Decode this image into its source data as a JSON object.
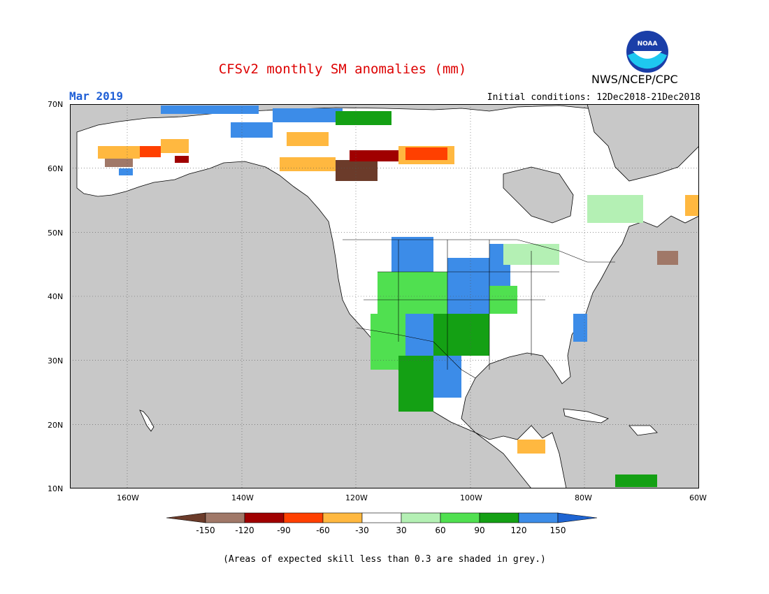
{
  "header": {
    "title": "CFSv2 monthly SM anomalies (mm)",
    "valid_month": "Mar 2019",
    "initial_conditions": "Initial conditions: 12Dec2018-21Dec2018",
    "agency": "NWS/NCEP/CPC",
    "logo_text": "NOAA"
  },
  "map": {
    "region": "North America",
    "lon_range": [
      -172,
      -60
    ],
    "lat_range": [
      10,
      70
    ],
    "lat_labels": [
      "70N",
      "60N",
      "50N",
      "40N",
      "30N",
      "20N",
      "10N"
    ],
    "lon_labels": [
      "160W",
      "140W",
      "120W",
      "100W",
      "80W",
      "60W"
    ],
    "ocean_color": "#c8c8c8",
    "land_color": "#ffffff",
    "grey_shading_meaning": "skill less than 0.3"
  },
  "legend": {
    "ticks": [
      "-150",
      "-120",
      "-90",
      "-60",
      "-30",
      "30",
      "60",
      "90",
      "120",
      "150"
    ],
    "colors": [
      "#6b3b2a",
      "#a07868",
      "#a00000",
      "#ff4000",
      "#ffb840",
      "#ffffff",
      "#b4f0b4",
      "#50e050",
      "#14a014",
      "#3c8ce8",
      "#1e64d2"
    ]
  },
  "footnote": "(Areas of expected skill less than 0.3 are shaded in grey.)"
}
